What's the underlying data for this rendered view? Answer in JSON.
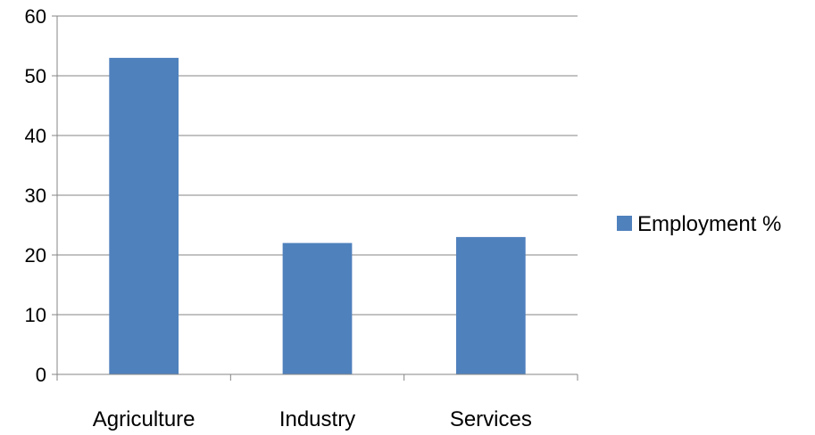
{
  "chart_data": {
    "type": "bar",
    "title": "",
    "xlabel": "",
    "ylabel": "",
    "categories": [
      "Agriculture",
      "Industry",
      "Services"
    ],
    "series": [
      {
        "name": "Employment %",
        "values": [
          53,
          22,
          23
        ],
        "color": "#4F81BD"
      }
    ],
    "ylim": [
      0,
      60
    ],
    "yticks": [
      "0",
      "10",
      "20",
      "30",
      "40",
      "50",
      "60"
    ],
    "grid": true,
    "legend_position": "right"
  }
}
